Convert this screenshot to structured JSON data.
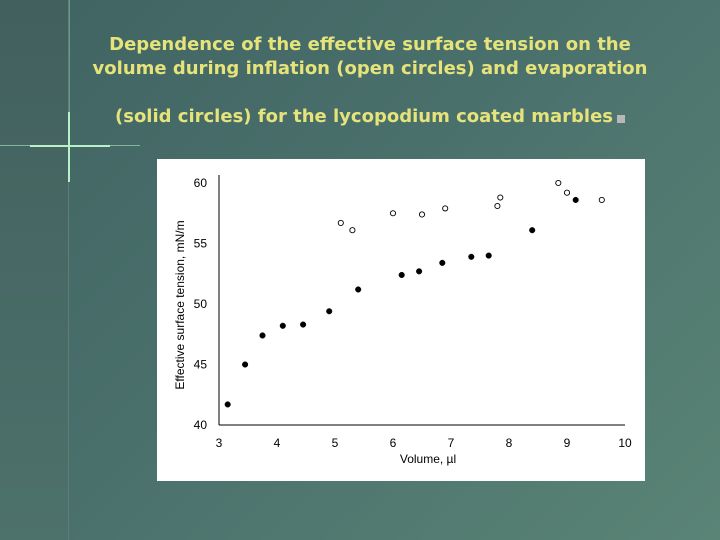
{
  "slide": {
    "title_line1": "Dependence of the effective surface tension on the",
    "title_line2": "volume during inflation (open circles) and evaporation",
    "title_line3": "(solid circles) for the lycopodium coated marbles",
    "accent_color": "#e6e37a"
  },
  "chart_data": {
    "type": "scatter",
    "title": "",
    "xlabel": "Volume, µl",
    "ylabel": "Effective surface tension, mN/m",
    "xlim": [
      3,
      10
    ],
    "ylim": [
      40,
      60
    ],
    "xticks": [
      3,
      4,
      5,
      6,
      7,
      8,
      9,
      10
    ],
    "yticks": [
      40,
      45,
      50,
      55,
      60
    ],
    "grid": false,
    "legend": "none",
    "series": [
      {
        "marker": "open",
        "points": [
          [
            5.1,
            56.7
          ],
          [
            5.3,
            56.1
          ],
          [
            6.0,
            57.5
          ],
          [
            6.5,
            57.4
          ],
          [
            6.9,
            57.9
          ],
          [
            7.8,
            58.1
          ],
          [
            7.85,
            58.8
          ],
          [
            8.85,
            60.0
          ],
          [
            9.0,
            59.2
          ],
          [
            9.6,
            58.6
          ]
        ]
      },
      {
        "marker": "solid",
        "points": [
          [
            3.15,
            41.7
          ],
          [
            3.45,
            45.0
          ],
          [
            3.75,
            47.4
          ],
          [
            4.1,
            48.2
          ],
          [
            4.45,
            48.3
          ],
          [
            4.9,
            49.4
          ],
          [
            5.4,
            51.2
          ],
          [
            6.15,
            52.4
          ],
          [
            6.45,
            52.7
          ],
          [
            6.85,
            53.4
          ],
          [
            7.35,
            53.9
          ],
          [
            7.65,
            54.0
          ],
          [
            8.4,
            56.1
          ],
          [
            9.15,
            58.6
          ]
        ]
      }
    ]
  }
}
